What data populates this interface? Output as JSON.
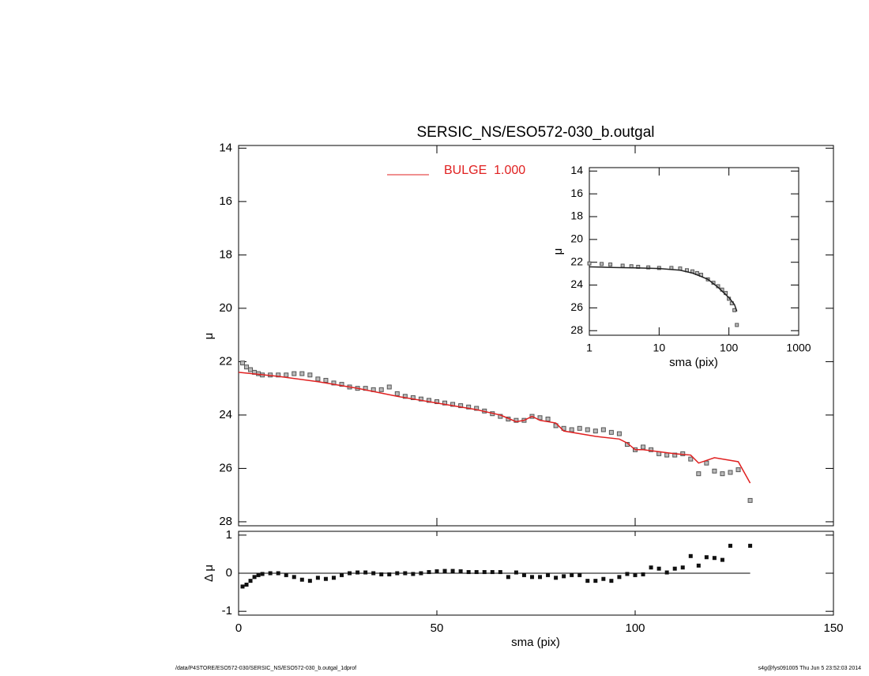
{
  "chart_data": [
    {
      "type": "scatter-line",
      "title": "SERSIC_NS/ESO572-030_b.outgal",
      "ylabel": "μ",
      "xlim": [
        0,
        150
      ],
      "ylim": [
        13.9,
        28.15
      ],
      "invert_y": true,
      "yticks": [
        14,
        16,
        18,
        20,
        22,
        24,
        26,
        28
      ],
      "legend": "top-center",
      "series": [
        {
          "color": "#555555",
          "marker": "square",
          "x": [
            1,
            2,
            3,
            4,
            5,
            6,
            8,
            10,
            12,
            14,
            16,
            18,
            20,
            22,
            24,
            26,
            28,
            30,
            32,
            34,
            36,
            38,
            40,
            42,
            44,
            46,
            48,
            50,
            52,
            54,
            56,
            58,
            60,
            62,
            64,
            66,
            68,
            70,
            72,
            74,
            76,
            78,
            80,
            82,
            84,
            86,
            88,
            90,
            92,
            94,
            96,
            98,
            100,
            102,
            104,
            106,
            108,
            110,
            112,
            114,
            116,
            118,
            120,
            122,
            124,
            126,
            129
          ],
          "values": [
            22.05,
            22.2,
            22.3,
            22.4,
            22.45,
            22.5,
            22.5,
            22.5,
            22.5,
            22.45,
            22.45,
            22.5,
            22.65,
            22.7,
            22.8,
            22.85,
            22.95,
            23.0,
            23.0,
            23.05,
            23.05,
            22.95,
            23.2,
            23.3,
            23.35,
            23.4,
            23.45,
            23.5,
            23.55,
            23.6,
            23.65,
            23.7,
            23.75,
            23.85,
            23.95,
            24.05,
            24.15,
            24.2,
            24.2,
            24.05,
            24.1,
            24.15,
            24.4,
            24.5,
            24.55,
            24.5,
            24.55,
            24.6,
            24.55,
            24.65,
            24.7,
            25.1,
            25.3,
            25.2,
            25.3,
            25.45,
            25.5,
            25.5,
            25.45,
            25.65,
            26.2,
            25.8,
            26.1,
            26.2,
            26.15,
            26.05,
            27.2
          ]
        },
        {
          "name": "BULGE  1.000",
          "color": "#e02020",
          "marker": "line",
          "x": [
            0,
            10,
            20,
            30,
            40,
            50,
            60,
            66,
            70,
            72,
            74,
            76,
            80,
            82,
            90,
            96,
            98,
            100,
            102,
            110,
            114,
            116,
            120,
            126,
            129
          ],
          "values": [
            22.4,
            22.55,
            22.75,
            23.0,
            23.3,
            23.55,
            23.8,
            24.0,
            24.25,
            24.2,
            24.05,
            24.2,
            24.3,
            24.6,
            24.8,
            24.9,
            25.05,
            25.3,
            25.3,
            25.45,
            25.5,
            25.8,
            25.6,
            25.75,
            26.55
          ]
        }
      ],
      "annotations": [
        "/data/P4STORE/ESO572-030/SERSIC_NS/ESO572-030_b.outgal_1dprof",
        "s4g@fys091005  Thu Jun  5 23:52:03 2014"
      ]
    },
    {
      "type": "residual",
      "xlabel": "sma (pix)",
      "ylabel": "Δ μ",
      "xlim": [
        0,
        150
      ],
      "ylim": [
        -1.1,
        1.1
      ],
      "xticks": [
        0,
        50,
        100,
        150
      ],
      "yticks": [
        -1,
        0,
        1
      ],
      "series": [
        {
          "color": "#111111",
          "marker": "square",
          "x": [
            1,
            2,
            3,
            4,
            5,
            6,
            8,
            10,
            12,
            14,
            16,
            18,
            20,
            22,
            24,
            26,
            28,
            30,
            32,
            34,
            36,
            38,
            40,
            42,
            44,
            46,
            48,
            50,
            52,
            54,
            56,
            58,
            60,
            62,
            64,
            66,
            68,
            70,
            72,
            74,
            76,
            78,
            80,
            82,
            84,
            86,
            88,
            90,
            92,
            94,
            96,
            98,
            100,
            102,
            104,
            106,
            108,
            110,
            112,
            114,
            116,
            118,
            120,
            122,
            124,
            129
          ],
          "values": [
            -0.35,
            -0.3,
            -0.2,
            -0.1,
            -0.05,
            -0.02,
            0,
            0,
            -0.05,
            -0.1,
            -0.17,
            -0.2,
            -0.12,
            -0.15,
            -0.12,
            -0.05,
            0,
            0.02,
            0.02,
            0,
            -0.03,
            -0.03,
            0,
            0,
            -0.02,
            0,
            0.03,
            0.05,
            0.06,
            0.06,
            0.05,
            0.03,
            0.03,
            0.03,
            0.03,
            0.03,
            -0.1,
            0.02,
            -0.05,
            -0.1,
            -0.1,
            -0.05,
            -0.12,
            -0.08,
            -0.05,
            -0.05,
            -0.2,
            -0.2,
            -0.15,
            -0.2,
            -0.1,
            -0.02,
            -0.05,
            -0.03,
            0.15,
            0.12,
            0.02,
            0.12,
            0.15,
            0.45,
            0.2,
            0.42,
            0.4,
            0.35,
            0.72,
            0.72
          ]
        }
      ]
    },
    {
      "type": "scatter-line",
      "xlabel": "sma (pix)",
      "ylabel": "μ",
      "log_x": true,
      "xlim": [
        1,
        1000
      ],
      "ylim": [
        13.7,
        28.4
      ],
      "invert_y": true,
      "xticks": [
        1,
        10,
        100,
        1000
      ],
      "yticks": [
        14,
        16,
        18,
        20,
        22,
        24,
        26,
        28
      ],
      "series": [
        {
          "color": "#555555",
          "marker": "square",
          "x": [
            1,
            1.5,
            2,
            3,
            4,
            5,
            7,
            10,
            15,
            20,
            25,
            30,
            35,
            40,
            50,
            60,
            70,
            80,
            90,
            100,
            110,
            120,
            130
          ],
          "values": [
            22.1,
            22.15,
            22.2,
            22.3,
            22.35,
            22.4,
            22.45,
            22.5,
            22.5,
            22.55,
            22.7,
            22.8,
            22.95,
            23.1,
            23.5,
            23.8,
            24.1,
            24.4,
            24.7,
            25.2,
            25.6,
            26.2,
            27.5
          ]
        },
        {
          "color": "#222222",
          "marker": "line",
          "x": [
            1,
            2,
            5,
            10,
            20,
            30,
            40,
            50,
            70,
            100,
            120,
            130
          ],
          "values": [
            22.4,
            22.45,
            22.5,
            22.55,
            22.7,
            22.95,
            23.25,
            23.5,
            24.2,
            25.1,
            25.7,
            26.3
          ]
        }
      ]
    }
  ]
}
